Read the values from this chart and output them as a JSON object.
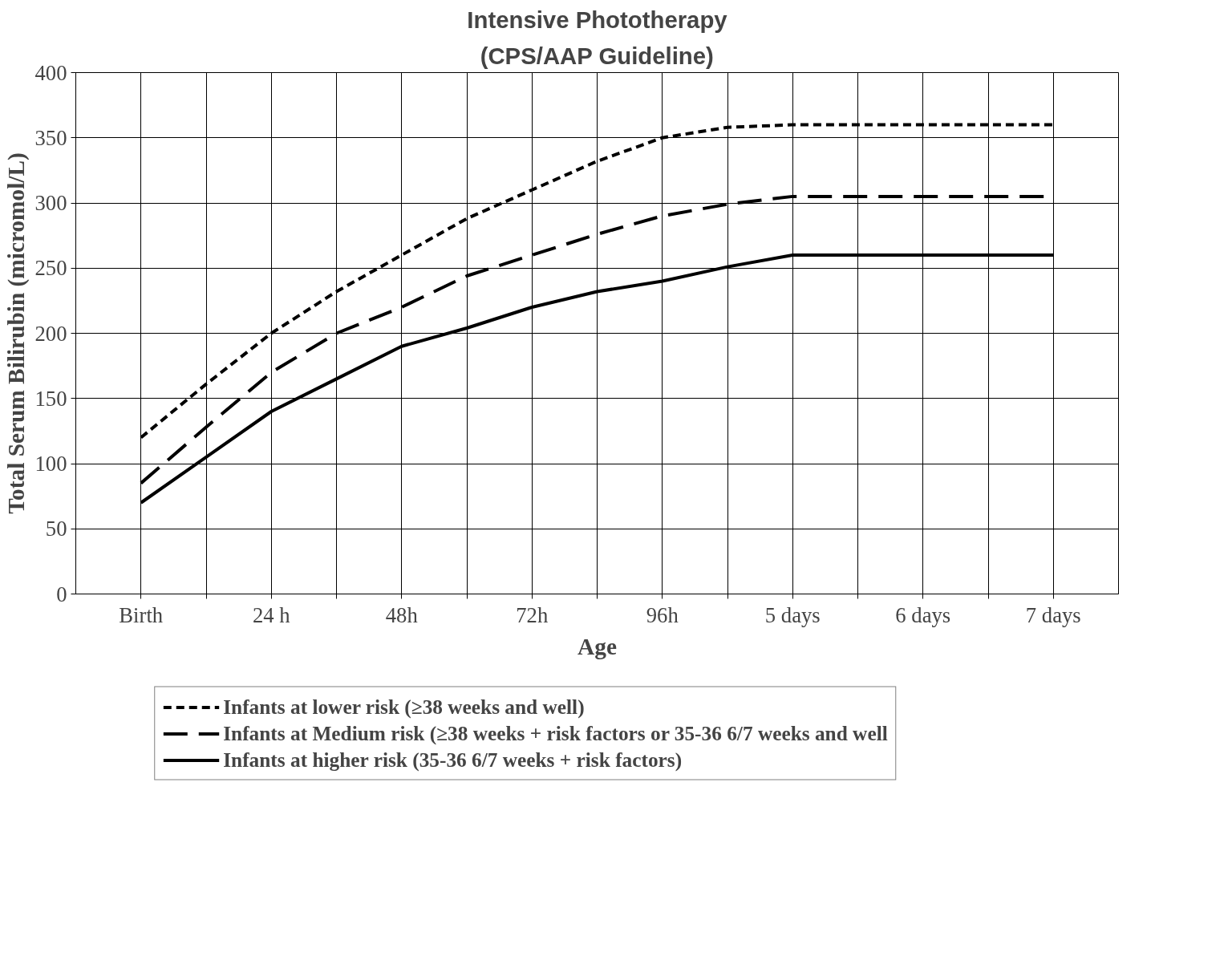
{
  "chart_data": {
    "type": "line",
    "title": "Intensive Phototherapy",
    "subtitle": "(CPS/AAP Guideline)",
    "xlabel": "Age",
    "ylabel": "Total Serum Bilirubin (micromol/L)",
    "categories": [
      "Birth",
      null,
      "24 h",
      null,
      "48h",
      null,
      "72h",
      null,
      "96h",
      null,
      "5 days",
      null,
      "6 days",
      null,
      "7 days"
    ],
    "series": [
      {
        "name": "Infants at lower risk (≥38 weeks and well)",
        "color": "#000000",
        "line_style": "dotted",
        "values": [
          120,
          161,
          200,
          232,
          260,
          288,
          310,
          332,
          350,
          358,
          360,
          360,
          360,
          360,
          360
        ]
      },
      {
        "name": "Infants at Medium risk (≥38 weeks + risk factors or 35-36 6/7 weeks and well",
        "color": "#000000",
        "line_style": "dashed",
        "values": [
          85,
          128,
          170,
          200,
          220,
          244,
          260,
          276,
          290,
          299,
          305,
          305,
          305,
          305,
          305
        ]
      },
      {
        "name": "Infants at higher risk (35-36 6/7 weeks + risk factors)",
        "color": "#000000",
        "line_style": "solid",
        "values": [
          70,
          105,
          140,
          165,
          190,
          204,
          220,
          232,
          240,
          251,
          260,
          260,
          260,
          260,
          260
        ]
      }
    ],
    "ylim": [
      0,
      400
    ],
    "yticks": [
      0,
      50,
      100,
      150,
      200,
      250,
      300,
      350,
      400
    ],
    "grid": true,
    "legend": "bottom"
  }
}
